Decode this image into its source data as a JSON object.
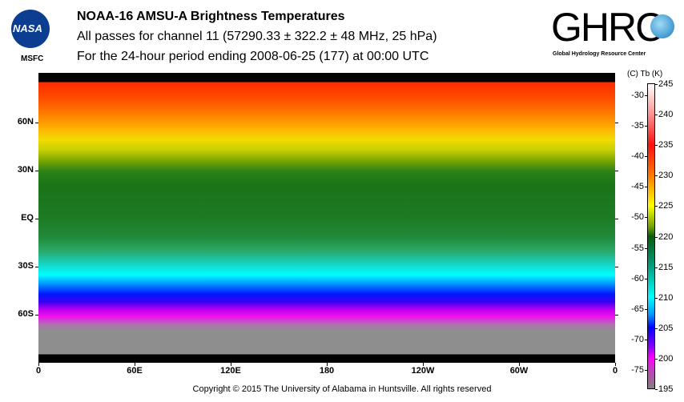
{
  "header": {
    "title": "NOAA-16 AMSU-A Brightness Temperatures",
    "subtitle": "All passes for channel 11 (57290.33 ± 322.2 ± 48 MHz, 25 hPa)",
    "period": "For the 24-hour period ending 2008-06-25 (177) at 00:00 UTC"
  },
  "logos": {
    "nasa": "NASA",
    "nasa_center": "MSFC",
    "ghrc": "GHRC",
    "ghrc_full": "Global Hydrology Resource Center"
  },
  "footer": {
    "copyright": "Copyright © 2015 The University of Alabama in Huntsville.  All rights reserved"
  },
  "chart_data": {
    "type": "heatmap",
    "title": "NOAA-16 AMSU-A Brightness Temperatures",
    "x_ticks": [
      "0",
      "60E",
      "120E",
      "180",
      "120W",
      "60W",
      "0"
    ],
    "y_ticks": [
      "60N",
      "30N",
      "EQ",
      "30S",
      "60S"
    ],
    "colorbar": {
      "header": "(C)  Tb  (K)",
      "kelvin_ticks": [
        "245",
        "240",
        "235",
        "230",
        "225",
        "220",
        "215",
        "210",
        "205",
        "200",
        "195"
      ],
      "celsius_ticks": [
        "-30",
        "-35",
        "-40",
        "-45",
        "-50",
        "-55",
        "-60",
        "-65",
        "-70",
        "-75"
      ],
      "range_k": [
        195,
        245
      ]
    },
    "zonal_profile": [
      {
        "lat": 85,
        "tb_k": 236
      },
      {
        "lat": 60,
        "tb_k": 230
      },
      {
        "lat": 45,
        "tb_k": 226
      },
      {
        "lat": 30,
        "tb_k": 224
      },
      {
        "lat": 0,
        "tb_k": 223
      },
      {
        "lat": -20,
        "tb_k": 221
      },
      {
        "lat": -35,
        "tb_k": 215
      },
      {
        "lat": -45,
        "tb_k": 210
      },
      {
        "lat": -55,
        "tb_k": 203
      },
      {
        "lat": -70,
        "tb_k": 195
      }
    ]
  }
}
